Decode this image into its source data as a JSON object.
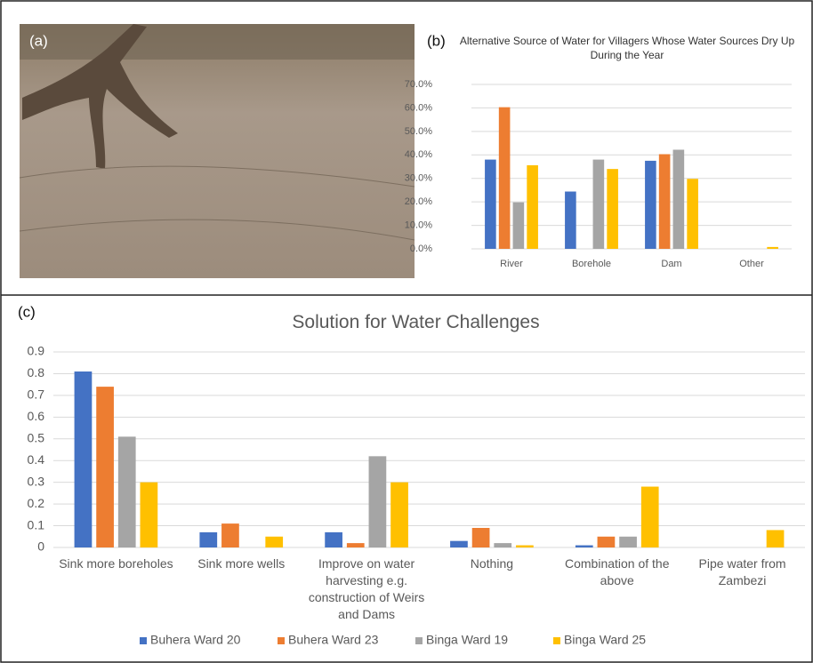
{
  "photo": {
    "label": "(a)"
  },
  "chart_data": [
    {
      "type": "bar",
      "panel_label": "(b)",
      "title": "Alternative Source of Water for Villagers Whose Water Sources Dry Up During the Year",
      "categories": [
        "River",
        "Borehole",
        "Dam",
        "Other"
      ],
      "series": [
        {
          "color": "#4472c4",
          "values": [
            38,
            24.4,
            37.5,
            0
          ]
        },
        {
          "color": "#ed7d31",
          "values": [
            60.3,
            0,
            40.3,
            0
          ]
        },
        {
          "color": "#a5a5a5",
          "values": [
            19.8,
            38,
            42.2,
            0
          ]
        },
        {
          "color": "#ffc000",
          "values": [
            35.6,
            34,
            29.8,
            0.8
          ]
        }
      ],
      "ylim": [
        0,
        70
      ],
      "yticks": [
        {
          "value": 0,
          "label": "0.0%"
        },
        {
          "value": 10,
          "label": "10.0%"
        },
        {
          "value": 20,
          "label": "20.0%"
        },
        {
          "value": 30,
          "label": "30.0%"
        },
        {
          "value": 40,
          "label": "40.0%"
        },
        {
          "value": 50,
          "label": "50.0%"
        },
        {
          "value": 60,
          "label": "60.0%"
        },
        {
          "value": 70,
          "label": "70.0%"
        }
      ],
      "grid": true
    },
    {
      "type": "bar",
      "panel_label": "(c)",
      "title": "Solution for Water Challenges",
      "categories": [
        "Sink more boreholes",
        "Sink more wells",
        "Improve on water harvesting e.g. construction of Weirs and Dams",
        "Nothing",
        "Combination of the above",
        "Pipe water from Zambezi"
      ],
      "series": [
        {
          "name": "Buhera Ward 20",
          "color": "#4472c4",
          "values": [
            0.81,
            0.07,
            0.07,
            0.03,
            0.01,
            0
          ]
        },
        {
          "name": "Buhera Ward 23",
          "color": "#ed7d31",
          "values": [
            0.74,
            0.11,
            0.02,
            0.09,
            0.05,
            0
          ]
        },
        {
          "name": "Binga Ward 19",
          "color": "#a5a5a5",
          "values": [
            0.51,
            0,
            0.42,
            0.02,
            0.05,
            0
          ]
        },
        {
          "name": "Binga Ward 25",
          "color": "#ffc000",
          "values": [
            0.3,
            0.05,
            0.3,
            0.01,
            0.28,
            0.08
          ]
        }
      ],
      "ylim": [
        0,
        0.9
      ],
      "yticks": [
        0,
        0.1,
        0.2,
        0.3,
        0.4,
        0.5,
        0.6,
        0.7,
        0.8,
        0.9
      ],
      "grid": true,
      "legend": "bottom"
    }
  ]
}
